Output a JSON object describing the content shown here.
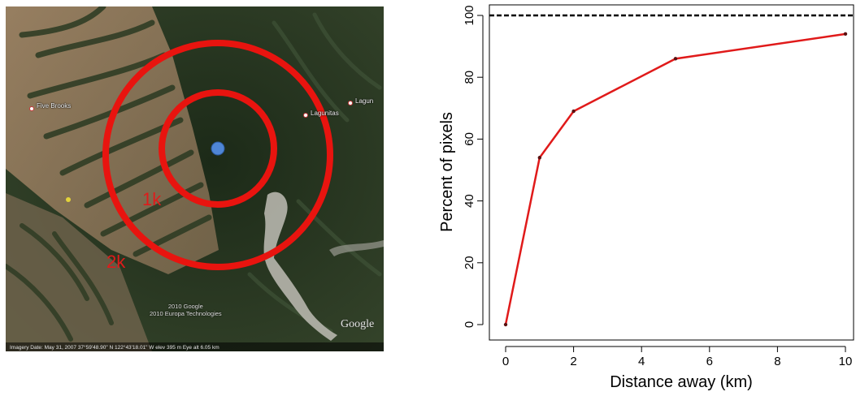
{
  "map": {
    "places": [
      "Five Brooks",
      "Lagunitas",
      "Lagun"
    ],
    "ring_labels": [
      "1k",
      "2k"
    ],
    "copyright_lines": [
      "2010 Google",
      "2010 Europa Technologies"
    ],
    "imagery_text": "Imagery Date: May 31, 2007  37°59'48.90\" N   122°43'18.01\" W   elev  395 m   Eye alt    6.05 km",
    "logo": "Google",
    "colors": {
      "ring": "#e8140f",
      "center_point": "#4f86d6"
    }
  },
  "chart_data": {
    "type": "line",
    "x": [
      0,
      1,
      2,
      5,
      10
    ],
    "y": [
      0,
      54,
      69,
      86,
      94
    ],
    "xlabel": "Distance away (km)",
    "ylabel": "Percent of pixels",
    "xlim": [
      0,
      10
    ],
    "ylim": [
      0,
      100
    ],
    "xticks": [
      0,
      2,
      4,
      6,
      8,
      10
    ],
    "yticks": [
      0,
      20,
      40,
      60,
      80,
      100
    ],
    "reference_line": {
      "y": 100,
      "style": "dashed",
      "color": "#000000"
    },
    "series_color": "#e01a1a",
    "grid": false
  }
}
